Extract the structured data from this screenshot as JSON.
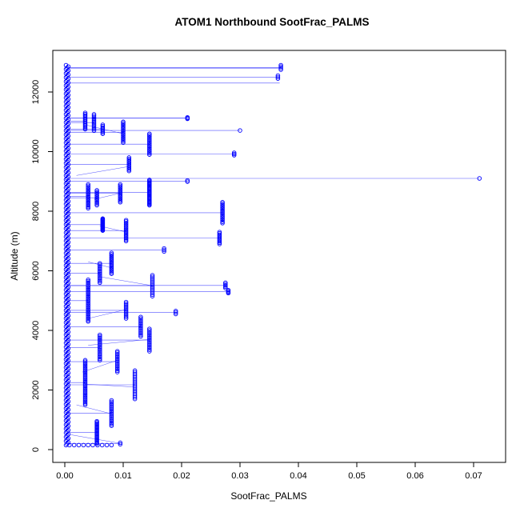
{
  "chart_data": {
    "type": "scatter",
    "title": "ATOM1 Northbound SootFrac_PALMS",
    "xlabel": "SootFrac_PALMS",
    "ylabel": "Altitude (m)",
    "xlim": [
      0,
      0.07
    ],
    "ylim": [
      0,
      13000
    ],
    "xtick_values": [
      0,
      0.01,
      0.02,
      0.03,
      0.04,
      0.05,
      0.06,
      0.07
    ],
    "xtick_labels": [
      "0.00",
      "0.01",
      "0.02",
      "0.03",
      "0.04",
      "0.05",
      "0.06",
      "0.07"
    ],
    "ytick_values": [
      0,
      2000,
      4000,
      6000,
      8000,
      10000,
      12000
    ],
    "ytick_labels": [
      "0",
      "2000",
      "4000",
      "6000",
      "8000",
      "10000",
      "12000"
    ],
    "point_color": "#0000ff",
    "line_color": "#3333ff",
    "grid": false,
    "legend": null,
    "main_column": {
      "x": 0.0004,
      "y0": 150,
      "y1": 12900,
      "n": 280
    },
    "clusters": [
      {
        "x": 0.0365,
        "y0": 12450,
        "y1": 12550,
        "n": 3
      },
      {
        "x": 0.037,
        "y0": 12750,
        "y1": 12900,
        "n": 4
      },
      {
        "x": 0.0035,
        "y0": 10750,
        "y1": 11300,
        "n": 14
      },
      {
        "x": 0.005,
        "y0": 10700,
        "y1": 11250,
        "n": 12
      },
      {
        "x": 0.0065,
        "y0": 10600,
        "y1": 10900,
        "n": 8
      },
      {
        "x": 0.01,
        "y0": 10300,
        "y1": 11000,
        "n": 16
      },
      {
        "x": 0.0145,
        "y0": 9900,
        "y1": 10600,
        "n": 16
      },
      {
        "x": 0.021,
        "y0": 11100,
        "y1": 11150,
        "n": 2
      },
      {
        "x": 0.029,
        "y0": 9880,
        "y1": 9960,
        "n": 3
      },
      {
        "x": 0.011,
        "y0": 9350,
        "y1": 9800,
        "n": 11
      },
      {
        "x": 0.0145,
        "y0": 8200,
        "y1": 9050,
        "n": 30
      },
      {
        "x": 0.021,
        "y0": 8990,
        "y1": 9030,
        "n": 2
      },
      {
        "x": 0.0095,
        "y0": 8300,
        "y1": 8900,
        "n": 14
      },
      {
        "x": 0.004,
        "y0": 8100,
        "y1": 8900,
        "n": 18
      },
      {
        "x": 0.0055,
        "y0": 8200,
        "y1": 8700,
        "n": 12
      },
      {
        "x": 0.027,
        "y0": 7600,
        "y1": 8300,
        "n": 16
      },
      {
        "x": 0.0065,
        "y0": 7350,
        "y1": 7750,
        "n": 18
      },
      {
        "x": 0.0105,
        "y0": 7000,
        "y1": 7700,
        "n": 16
      },
      {
        "x": 0.0265,
        "y0": 6900,
        "y1": 7300,
        "n": 10
      },
      {
        "x": 0.017,
        "y0": 6650,
        "y1": 6750,
        "n": 3
      },
      {
        "x": 0.008,
        "y0": 5900,
        "y1": 6600,
        "n": 16
      },
      {
        "x": 0.006,
        "y0": 5600,
        "y1": 6250,
        "n": 14
      },
      {
        "x": 0.0275,
        "y0": 5420,
        "y1": 5600,
        "n": 5
      },
      {
        "x": 0.028,
        "y0": 5250,
        "y1": 5350,
        "n": 4
      },
      {
        "x": 0.015,
        "y0": 5150,
        "y1": 5850,
        "n": 14
      },
      {
        "x": 0.004,
        "y0": 4300,
        "y1": 5700,
        "n": 30
      },
      {
        "x": 0.0105,
        "y0": 4400,
        "y1": 4950,
        "n": 12
      },
      {
        "x": 0.019,
        "y0": 4550,
        "y1": 4650,
        "n": 3
      },
      {
        "x": 0.013,
        "y0": 3800,
        "y1": 4450,
        "n": 14
      },
      {
        "x": 0.0145,
        "y0": 3300,
        "y1": 4050,
        "n": 16
      },
      {
        "x": 0.006,
        "y0": 3000,
        "y1": 3850,
        "n": 18
      },
      {
        "x": 0.009,
        "y0": 2600,
        "y1": 3300,
        "n": 15
      },
      {
        "x": 0.0035,
        "y0": 1500,
        "y1": 3000,
        "n": 32
      },
      {
        "x": 0.012,
        "y0": 1700,
        "y1": 2650,
        "n": 18
      },
      {
        "x": 0.008,
        "y0": 800,
        "y1": 1650,
        "n": 18
      },
      {
        "x": 0.0055,
        "y0": 200,
        "y1": 950,
        "n": 22
      },
      {
        "x": 0.0095,
        "y0": 180,
        "y1": 230,
        "n": 2
      }
    ],
    "outliers": [
      {
        "x": 0.071,
        "y": 9100
      },
      {
        "x": 0.03,
        "y": 10710
      },
      {
        "x": 0.021,
        "y": 11120
      }
    ],
    "extra_lines": [
      {
        "y": 12300,
        "x0": 0.0004,
        "x1": 0.0368
      },
      {
        "y": 12800,
        "x0": 0.0004,
        "x1": 0.037
      },
      {
        "y": 9100,
        "x0": 0.0004,
        "x1": 0.071
      },
      {
        "y": 10710,
        "x0": 0.0004,
        "x1": 0.03
      },
      {
        "y": 11120,
        "x0": 0.0004,
        "x1": 0.021
      }
    ],
    "hruns": [
      {
        "y": 150,
        "x0": 0.0008,
        "x1": 0.008,
        "n": 10
      }
    ],
    "diagonals": [
      [
        0.002,
        1500,
        0.008,
        1200
      ],
      [
        0.003,
        2600,
        0.009,
        3000
      ],
      [
        0.004,
        4400,
        0.0105,
        4700
      ],
      [
        0.0035,
        10900,
        0.01,
        10600
      ],
      [
        0.005,
        8400,
        0.0095,
        8600
      ],
      [
        0.006,
        5800,
        0.015,
        5500
      ],
      [
        0.004,
        3500,
        0.0145,
        3700
      ],
      [
        0.0035,
        2200,
        0.012,
        2100
      ],
      [
        0.006,
        7500,
        0.0105,
        7300
      ],
      [
        0.002,
        9200,
        0.011,
        9500
      ],
      [
        0.004,
        6300,
        0.008,
        6100
      ],
      [
        0.001,
        500,
        0.0095,
        210
      ]
    ]
  }
}
